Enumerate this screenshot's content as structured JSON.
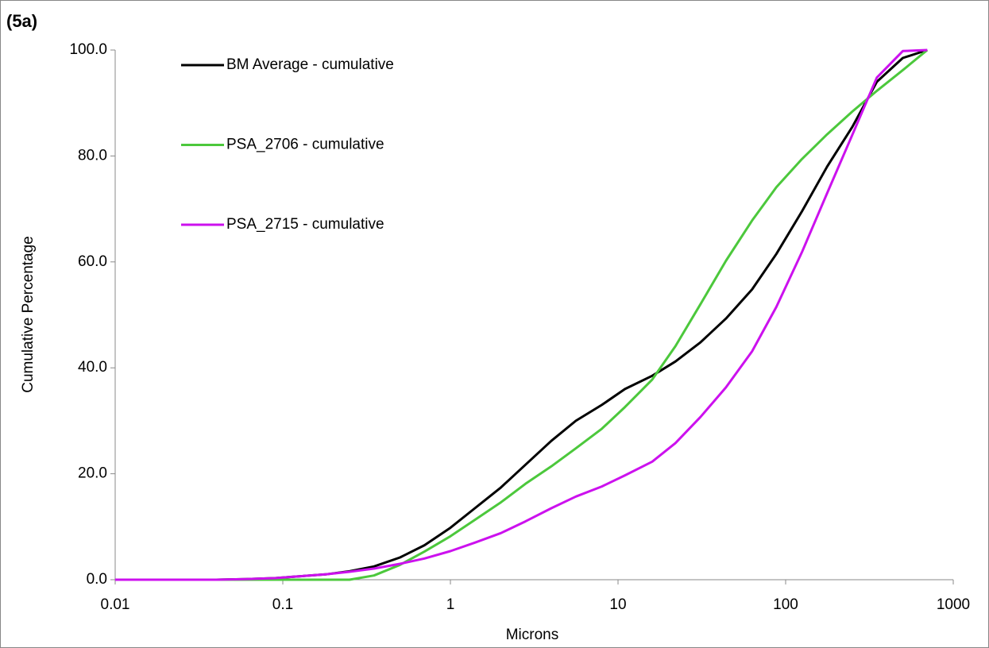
{
  "chart_data": {
    "type": "line",
    "title": "(5a)",
    "x_label": "Microns",
    "y_label": "Cumulative Percentage",
    "log_x": true,
    "xlim": [
      0.01,
      1000
    ],
    "xticks": [
      0.01,
      0.1,
      1,
      10,
      100,
      1000
    ],
    "ylim": [
      0,
      100
    ],
    "yticks": [
      {
        "value": 0,
        "label": "0.0"
      },
      {
        "value": 20,
        "label": "20.0"
      },
      {
        "value": 40,
        "label": "40.0"
      },
      {
        "value": 60,
        "label": "60.0"
      },
      {
        "value": 80,
        "label": "80.0"
      },
      {
        "value": 100,
        "label": "100.0"
      }
    ],
    "grid": false,
    "legend": "upper left",
    "x": [
      0.01,
      0.02,
      0.04,
      0.06,
      0.09,
      0.12,
      0.18,
      0.25,
      0.35,
      0.5,
      0.7,
      1,
      1.4,
      2,
      2.8,
      4,
      5.6,
      8,
      11,
      16,
      22,
      31,
      44,
      63,
      88,
      125,
      177,
      250,
      350,
      500,
      700
    ],
    "series": [
      {
        "name": "BM Average - cumulative",
        "color": "#000000",
        "values": [
          0,
          0,
          0,
          0.1,
          0.3,
          0.6,
          1.0,
          1.6,
          2.5,
          4.2,
          6.5,
          9.8,
          13.5,
          17.4,
          21.7,
          26.2,
          30,
          33,
          36,
          38.5,
          41.2,
          44.8,
          49.3,
          54.8,
          61.5,
          69.5,
          78,
          85.5,
          94,
          98.5,
          100
        ]
      },
      {
        "name": "PSA_2706 - cumulative",
        "color": "#4cc83c",
        "values": [
          0,
          0,
          0,
          0,
          0,
          0,
          0,
          0,
          0.8,
          2.8,
          5.3,
          8.2,
          11.3,
          14.6,
          18.1,
          21.4,
          24.8,
          28.5,
          32.6,
          37.8,
          44.1,
          52,
          60.2,
          67.8,
          74.1,
          79.4,
          84.1,
          88.4,
          92.3,
          96.2,
          100
        ]
      },
      {
        "name": "PSA_2715 - cumulative",
        "color": "#cc11ee",
        "values": [
          0,
          0,
          0,
          0.1,
          0.3,
          0.6,
          1.0,
          1.5,
          2.1,
          3.0,
          4.0,
          5.4,
          7.0,
          8.8,
          11.0,
          13.5,
          15.7,
          17.6,
          19.7,
          22.3,
          25.8,
          30.7,
          36.3,
          43.1,
          51.5,
          61.8,
          73,
          84,
          94.8,
          99.8,
          100
        ]
      }
    ]
  }
}
